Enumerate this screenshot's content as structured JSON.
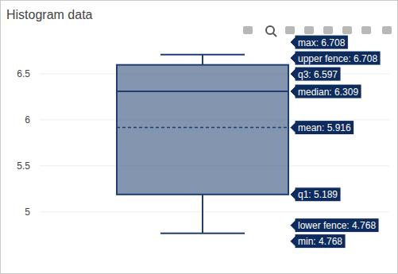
{
  "chart_data": {
    "type": "box",
    "title": "Histogram data",
    "color": "#1f3f6e",
    "stats": [
      {
        "value": 6.708,
        "label": "max: 6.708"
      },
      {
        "value": 6.708,
        "label": "upper fence: 6.708"
      },
      {
        "value": 6.597,
        "label": "q3: 6.597"
      },
      {
        "value": 6.309,
        "label": "median: 6.309"
      },
      {
        "value": 5.916,
        "label": "mean: 5.916"
      },
      {
        "value": 5.189,
        "label": "q1: 5.189"
      },
      {
        "value": 4.768,
        "label": "lower fence: 4.768"
      },
      {
        "value": 4.768,
        "label": "min: 4.768"
      }
    ],
    "ylim": [
      4.67,
      6.81
    ],
    "yticks": [
      5,
      5.5,
      6,
      6.5
    ],
    "grid": true,
    "tick_labels": "y"
  }
}
